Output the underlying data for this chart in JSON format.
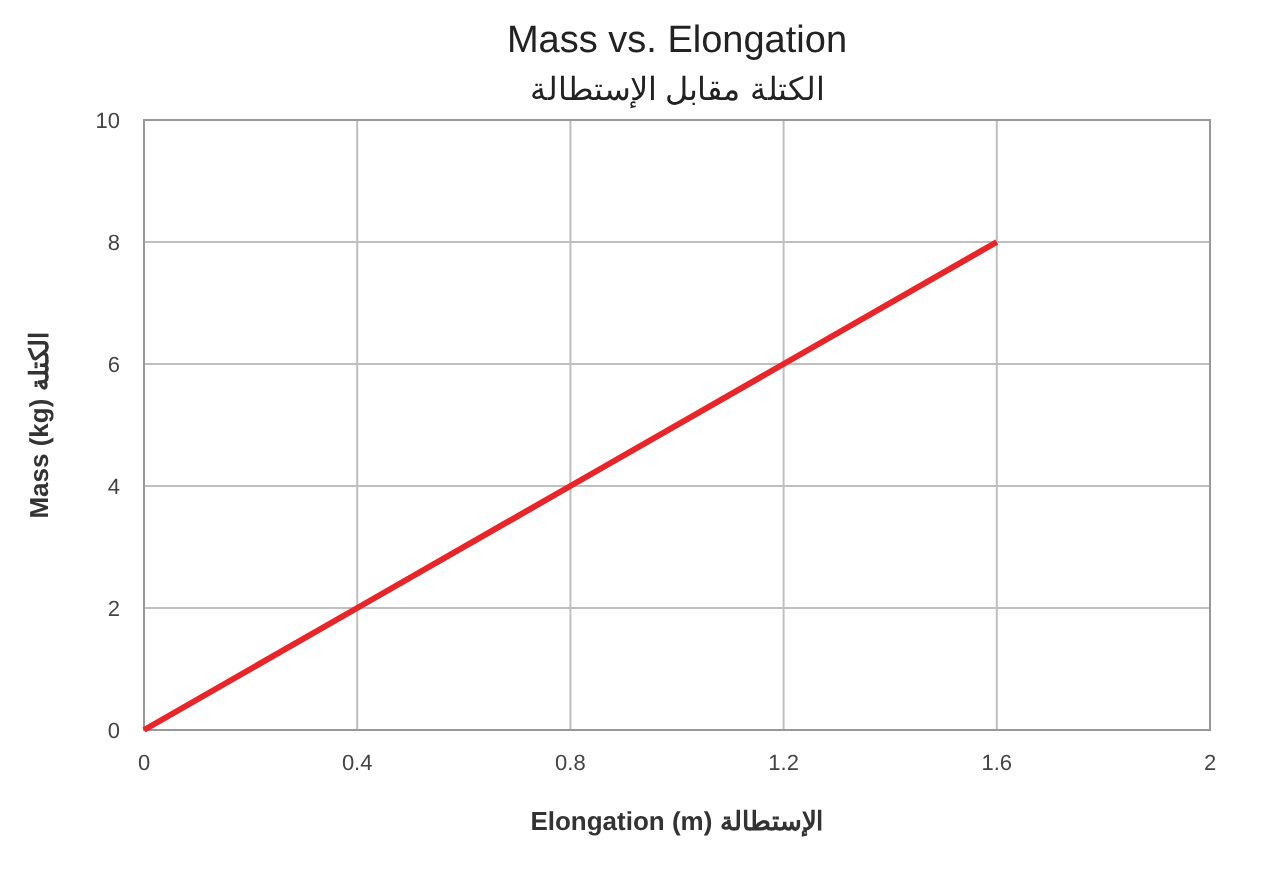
{
  "chart_data": {
    "type": "line",
    "title": "Mass vs. Elongation",
    "subtitle": "الكتلة مقابل الإستطالة",
    "xlabel": "Elongation (m)  الإستطالة",
    "ylabel": "Mass  (kg) الكتلة",
    "x": [
      0,
      0.4,
      0.8,
      1.2,
      1.6
    ],
    "series": [
      {
        "color": "#e8262a",
        "values": [
          0,
          2,
          4,
          6,
          8
        ]
      }
    ],
    "xlim": [
      0,
      2
    ],
    "xticks": [
      0,
      0.4,
      0.8,
      1.2,
      1.6,
      2
    ],
    "ylim": [
      0,
      10
    ],
    "yticks": [
      0,
      2,
      4,
      6,
      8,
      10
    ],
    "grid": true,
    "marker": "none",
    "line_style": "solid"
  }
}
